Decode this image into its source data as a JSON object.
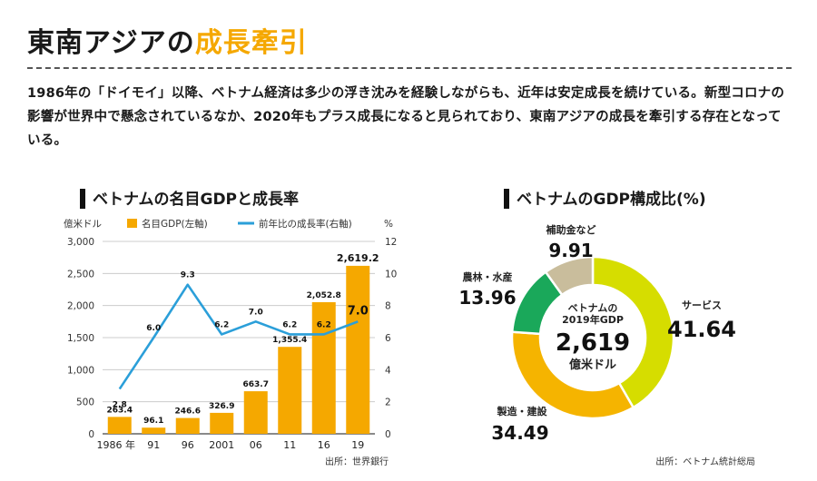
{
  "header": {
    "title_main": "東南アジアの",
    "title_highlight": "成長牽引",
    "lead": "1986年の「ドイモイ」以降、ベトナム経済は多少の浮き沈みを経験しながらも、近年は安定成長を続けている。新型コロナの影響が世界中で懸念されているなか、2020年もプラス成長になると見られており、東南アジアの成長を牽引する存在となっている。"
  },
  "colors": {
    "accent": "#f5a800",
    "line": "#2b9fd9",
    "ink": "#1a1a1a",
    "donut": [
      "#d6dd00",
      "#f5b400",
      "#1aa85a",
      "#c9bd9c"
    ]
  },
  "chart_data": [
    {
      "type": "bar",
      "title": "ベトナムの名目GDPと成長率",
      "categories": [
        "1986 年",
        "91",
        "96",
        "2001",
        "06",
        "11",
        "16",
        "19"
      ],
      "y_left": {
        "label": "億米ドル",
        "ticks": [
          "0",
          "500",
          "1,000",
          "1,500",
          "2,000",
          "2,500",
          "3,000"
        ],
        "ylim": [
          0,
          3000
        ]
      },
      "y_right": {
        "label": "%",
        "ticks": [
          "0",
          "2",
          "4",
          "6",
          "8",
          "10",
          "12"
        ],
        "ylim": [
          0,
          12
        ]
      },
      "grid": true,
      "legend_position": "top",
      "series": [
        {
          "name": "名目GDP(左軸)",
          "type": "bar",
          "axis": "left",
          "values": [
            263.4,
            96.1,
            246.6,
            326.9,
            663.7,
            1355.4,
            2052.8,
            2619.2
          ],
          "labels": [
            "263.4",
            "96.1",
            "246.6",
            "326.9",
            "663.7",
            "1,355.4",
            "2,052.8",
            "2,619.2"
          ]
        },
        {
          "name": "前年比の成長率(右軸)",
          "type": "line",
          "axis": "right",
          "values": [
            2.8,
            6.0,
            9.3,
            6.2,
            7.0,
            6.2,
            6.2,
            7.0
          ],
          "labels": [
            "2.8",
            "6.0",
            "9.3",
            "6.2",
            "7.0",
            "6.2",
            "6.2",
            "7.0"
          ]
        }
      ],
      "source": "出所：世界銀行"
    },
    {
      "type": "pie",
      "title": "ベトナムのGDP構成比(%)",
      "center_label": [
        "ベトナムの",
        "2019年GDP"
      ],
      "center_value": "2,619",
      "center_unit": "億米ドル",
      "slices": [
        {
          "name": "サービス",
          "value": 41.64,
          "label": "41.64"
        },
        {
          "name": "製造・建設",
          "value": 34.49,
          "label": "34.49"
        },
        {
          "name": "農林・水産",
          "value": 13.96,
          "label": "13.96"
        },
        {
          "name": "補助金など",
          "value": 9.91,
          "label": "9.91"
        }
      ],
      "source": "出所：ベトナム統計総局"
    }
  ]
}
